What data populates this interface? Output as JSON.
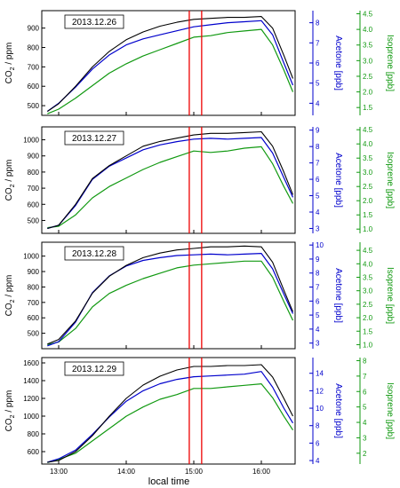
{
  "colors": {
    "co2": "#000000",
    "acetone": "#0000cc",
    "isoprene": "#119911",
    "marker": "#ee0000"
  },
  "shared_x": {
    "label": "local time",
    "ticks": [
      "13:00",
      "14:00",
      "15:00",
      "16:00"
    ]
  },
  "chart_data": [
    {
      "type": "line",
      "date_label": "2013.12.26",
      "x_range": [
        "12:45",
        "16:30"
      ],
      "markers": [
        "14:56",
        "15:07"
      ],
      "left_axis": {
        "label": "CO2 / ppm",
        "range": [
          450,
          990
        ],
        "ticks": [
          500,
          600,
          700,
          800,
          900
        ]
      },
      "acetone_axis": {
        "label": "Acetone [ppb]",
        "range": [
          3.4,
          8.6
        ],
        "ticks": [
          4,
          5,
          6,
          7,
          8
        ]
      },
      "isoprene_axis": {
        "label": "Isoprene [ppb]",
        "range": [
          1.25,
          4.6
        ],
        "ticks": [
          1.5,
          2.0,
          2.5,
          3.0,
          3.5,
          4.0,
          4.5
        ]
      },
      "series": [
        {
          "key": "co2",
          "axis": "left",
          "x": [
            "12:50",
            "13:00",
            "13:15",
            "13:30",
            "13:45",
            "14:00",
            "14:15",
            "14:30",
            "14:45",
            "15:00",
            "15:15",
            "15:30",
            "15:45",
            "16:00",
            "16:10",
            "16:20",
            "16:28"
          ],
          "values": [
            470,
            510,
            600,
            700,
            780,
            840,
            880,
            910,
            930,
            945,
            950,
            955,
            955,
            960,
            900,
            760,
            640
          ]
        },
        {
          "key": "acetone",
          "axis": "acetone",
          "x": [
            "12:50",
            "13:00",
            "13:15",
            "13:30",
            "13:45",
            "14:00",
            "14:15",
            "14:30",
            "14:45",
            "15:00",
            "15:15",
            "15:30",
            "15:45",
            "16:00",
            "16:10",
            "16:20",
            "16:28"
          ],
          "values": [
            3.6,
            4.0,
            4.8,
            5.7,
            6.4,
            6.9,
            7.2,
            7.4,
            7.6,
            7.8,
            7.9,
            8.0,
            8.05,
            8.1,
            7.4,
            6.0,
            4.9
          ]
        },
        {
          "key": "isoprene",
          "axis": "isoprene",
          "x": [
            "12:50",
            "13:00",
            "13:15",
            "13:30",
            "13:45",
            "14:00",
            "14:15",
            "14:30",
            "14:45",
            "15:00",
            "15:15",
            "15:30",
            "15:45",
            "16:00",
            "16:10",
            "16:20",
            "16:28"
          ],
          "values": [
            1.3,
            1.45,
            1.8,
            2.2,
            2.6,
            2.9,
            3.15,
            3.35,
            3.55,
            3.75,
            3.8,
            3.9,
            3.95,
            4.0,
            3.5,
            2.7,
            2.0
          ]
        }
      ]
    },
    {
      "type": "line",
      "date_label": "2013.12.27",
      "x_range": [
        "12:45",
        "16:30"
      ],
      "markers": [
        "14:56",
        "15:07"
      ],
      "left_axis": {
        "label": "CO2 / ppm",
        "range": [
          420,
          1080
        ],
        "ticks": [
          500,
          600,
          700,
          800,
          900,
          1000
        ]
      },
      "acetone_axis": {
        "label": "Acetone [ppb]",
        "range": [
          2.7,
          9.2
        ],
        "ticks": [
          3,
          4,
          5,
          6,
          7,
          8,
          9
        ]
      },
      "isoprene_axis": {
        "label": "Isoprene [ppb]",
        "range": [
          0.85,
          4.6
        ],
        "ticks": [
          1.0,
          1.5,
          2.0,
          2.5,
          3.0,
          3.5,
          4.0,
          4.5
        ]
      },
      "series": [
        {
          "key": "co2",
          "axis": "left",
          "x": [
            "12:50",
            "13:00",
            "13:15",
            "13:30",
            "13:45",
            "14:00",
            "14:15",
            "14:30",
            "14:45",
            "15:00",
            "15:15",
            "15:30",
            "15:45",
            "16:00",
            "16:10",
            "16:20",
            "16:28"
          ],
          "values": [
            450,
            470,
            600,
            760,
            840,
            900,
            960,
            990,
            1010,
            1030,
            1040,
            1040,
            1045,
            1050,
            960,
            800,
            660
          ]
        },
        {
          "key": "acetone",
          "axis": "acetone",
          "x": [
            "12:50",
            "13:00",
            "13:15",
            "13:30",
            "13:45",
            "14:00",
            "14:15",
            "14:30",
            "14:45",
            "15:00",
            "15:15",
            "15:30",
            "15:45",
            "16:00",
            "16:10",
            "16:20",
            "16:28"
          ],
          "values": [
            3.0,
            3.2,
            4.4,
            6.0,
            6.8,
            7.3,
            7.8,
            8.1,
            8.3,
            8.45,
            8.5,
            8.45,
            8.5,
            8.55,
            7.6,
            6.1,
            4.9
          ]
        },
        {
          "key": "isoprene",
          "axis": "isoprene",
          "x": [
            "12:50",
            "13:00",
            "13:15",
            "13:30",
            "13:45",
            "14:00",
            "14:15",
            "14:30",
            "14:45",
            "15:00",
            "15:15",
            "15:30",
            "15:45",
            "16:00",
            "16:10",
            "16:20",
            "16:28"
          ],
          "values": [
            1.05,
            1.1,
            1.5,
            2.1,
            2.5,
            2.8,
            3.1,
            3.35,
            3.55,
            3.75,
            3.7,
            3.75,
            3.85,
            3.9,
            3.3,
            2.5,
            1.9
          ]
        }
      ]
    },
    {
      "type": "line",
      "date_label": "2013.12.28",
      "x_range": [
        "12:45",
        "16:30"
      ],
      "markers": [
        "14:56",
        "15:07"
      ],
      "left_axis": {
        "label": "CO2 / ppm",
        "range": [
          400,
          1090
        ],
        "ticks": [
          500,
          600,
          700,
          800,
          900,
          1000
        ]
      },
      "acetone_axis": {
        "label": "Acetone [ppb]",
        "range": [
          2.6,
          10.2
        ],
        "ticks": [
          3,
          4,
          5,
          6,
          7,
          8,
          9,
          10
        ]
      },
      "isoprene_axis": {
        "label": "Isoprene [ppb]",
        "range": [
          0.85,
          4.8
        ],
        "ticks": [
          1.0,
          1.5,
          2.0,
          2.5,
          3.0,
          3.5,
          4.0,
          4.5
        ]
      },
      "series": [
        {
          "key": "co2",
          "axis": "left",
          "x": [
            "12:50",
            "13:00",
            "13:15",
            "13:30",
            "13:45",
            "14:00",
            "14:15",
            "14:30",
            "14:45",
            "15:00",
            "15:15",
            "15:30",
            "15:45",
            "16:00",
            "16:10",
            "16:20",
            "16:28"
          ],
          "values": [
            430,
            460,
            580,
            760,
            870,
            940,
            990,
            1020,
            1040,
            1050,
            1060,
            1060,
            1065,
            1060,
            960,
            780,
            640
          ]
        },
        {
          "key": "acetone",
          "axis": "acetone",
          "x": [
            "12:50",
            "13:00",
            "13:15",
            "13:30",
            "13:45",
            "14:00",
            "14:15",
            "14:30",
            "14:45",
            "15:00",
            "15:15",
            "15:30",
            "15:45",
            "16:00",
            "16:10",
            "16:20",
            "16:28"
          ],
          "values": [
            2.8,
            3.1,
            4.5,
            6.6,
            7.8,
            8.5,
            8.9,
            9.1,
            9.25,
            9.3,
            9.35,
            9.3,
            9.35,
            9.4,
            8.3,
            6.5,
            5.1
          ]
        },
        {
          "key": "isoprene",
          "axis": "isoprene",
          "x": [
            "12:50",
            "13:00",
            "13:15",
            "13:30",
            "13:45",
            "14:00",
            "14:15",
            "14:30",
            "14:45",
            "15:00",
            "15:15",
            "15:30",
            "15:45",
            "16:00",
            "16:10",
            "16:20",
            "16:28"
          ],
          "values": [
            1.0,
            1.1,
            1.6,
            2.4,
            2.9,
            3.2,
            3.45,
            3.65,
            3.85,
            3.95,
            4.0,
            4.05,
            4.1,
            4.1,
            3.5,
            2.6,
            1.9
          ]
        }
      ]
    },
    {
      "type": "line",
      "date_label": "2013.12.29",
      "x_range": [
        "12:45",
        "16:30"
      ],
      "markers": [
        "14:56",
        "15:07"
      ],
      "left_axis": {
        "label": "CO2 / ppm",
        "range": [
          460,
          1660
        ],
        "ticks": [
          600,
          800,
          1000,
          1200,
          1400,
          1600
        ]
      },
      "acetone_axis": {
        "label": "Acetone [ppb]",
        "range": [
          3.6,
          15.8
        ],
        "ticks": [
          4,
          6,
          8,
          10,
          12,
          14
        ]
      },
      "isoprene_axis": {
        "label": "Isoprene [ppb]",
        "range": [
          1.3,
          8.2
        ],
        "ticks": [
          2,
          3,
          4,
          5,
          6,
          7,
          8
        ]
      },
      "series": [
        {
          "key": "co2",
          "axis": "left",
          "x": [
            "12:50",
            "13:00",
            "13:15",
            "13:30",
            "13:45",
            "14:00",
            "14:15",
            "14:30",
            "14:45",
            "15:00",
            "15:15",
            "15:30",
            "15:45",
            "16:00",
            "16:10",
            "16:20",
            "16:28"
          ],
          "values": [
            480,
            500,
            600,
            780,
            1000,
            1200,
            1350,
            1450,
            1520,
            1560,
            1560,
            1570,
            1570,
            1580,
            1440,
            1200,
            1000
          ]
        },
        {
          "key": "acetone",
          "axis": "acetone",
          "x": [
            "12:50",
            "13:00",
            "13:15",
            "13:30",
            "13:45",
            "14:00",
            "14:15",
            "14:30",
            "14:45",
            "15:00",
            "15:15",
            "15:30",
            "15:45",
            "16:00",
            "16:10",
            "16:20",
            "16:28"
          ],
          "values": [
            3.8,
            4.2,
            5.2,
            7.0,
            9.0,
            10.8,
            12.0,
            12.8,
            13.3,
            13.6,
            13.7,
            13.8,
            13.9,
            14.2,
            12.4,
            10.0,
            8.3
          ]
        },
        {
          "key": "isoprene",
          "axis": "isoprene",
          "x": [
            "12:50",
            "13:00",
            "13:15",
            "13:30",
            "13:45",
            "14:00",
            "14:15",
            "14:30",
            "14:45",
            "15:00",
            "15:15",
            "15:30",
            "15:45",
            "16:00",
            "16:10",
            "16:20",
            "16:28"
          ],
          "values": [
            1.4,
            1.6,
            2.0,
            2.8,
            3.6,
            4.4,
            5.0,
            5.5,
            5.8,
            6.2,
            6.2,
            6.3,
            6.4,
            6.5,
            5.6,
            4.4,
            3.5
          ]
        }
      ]
    }
  ]
}
